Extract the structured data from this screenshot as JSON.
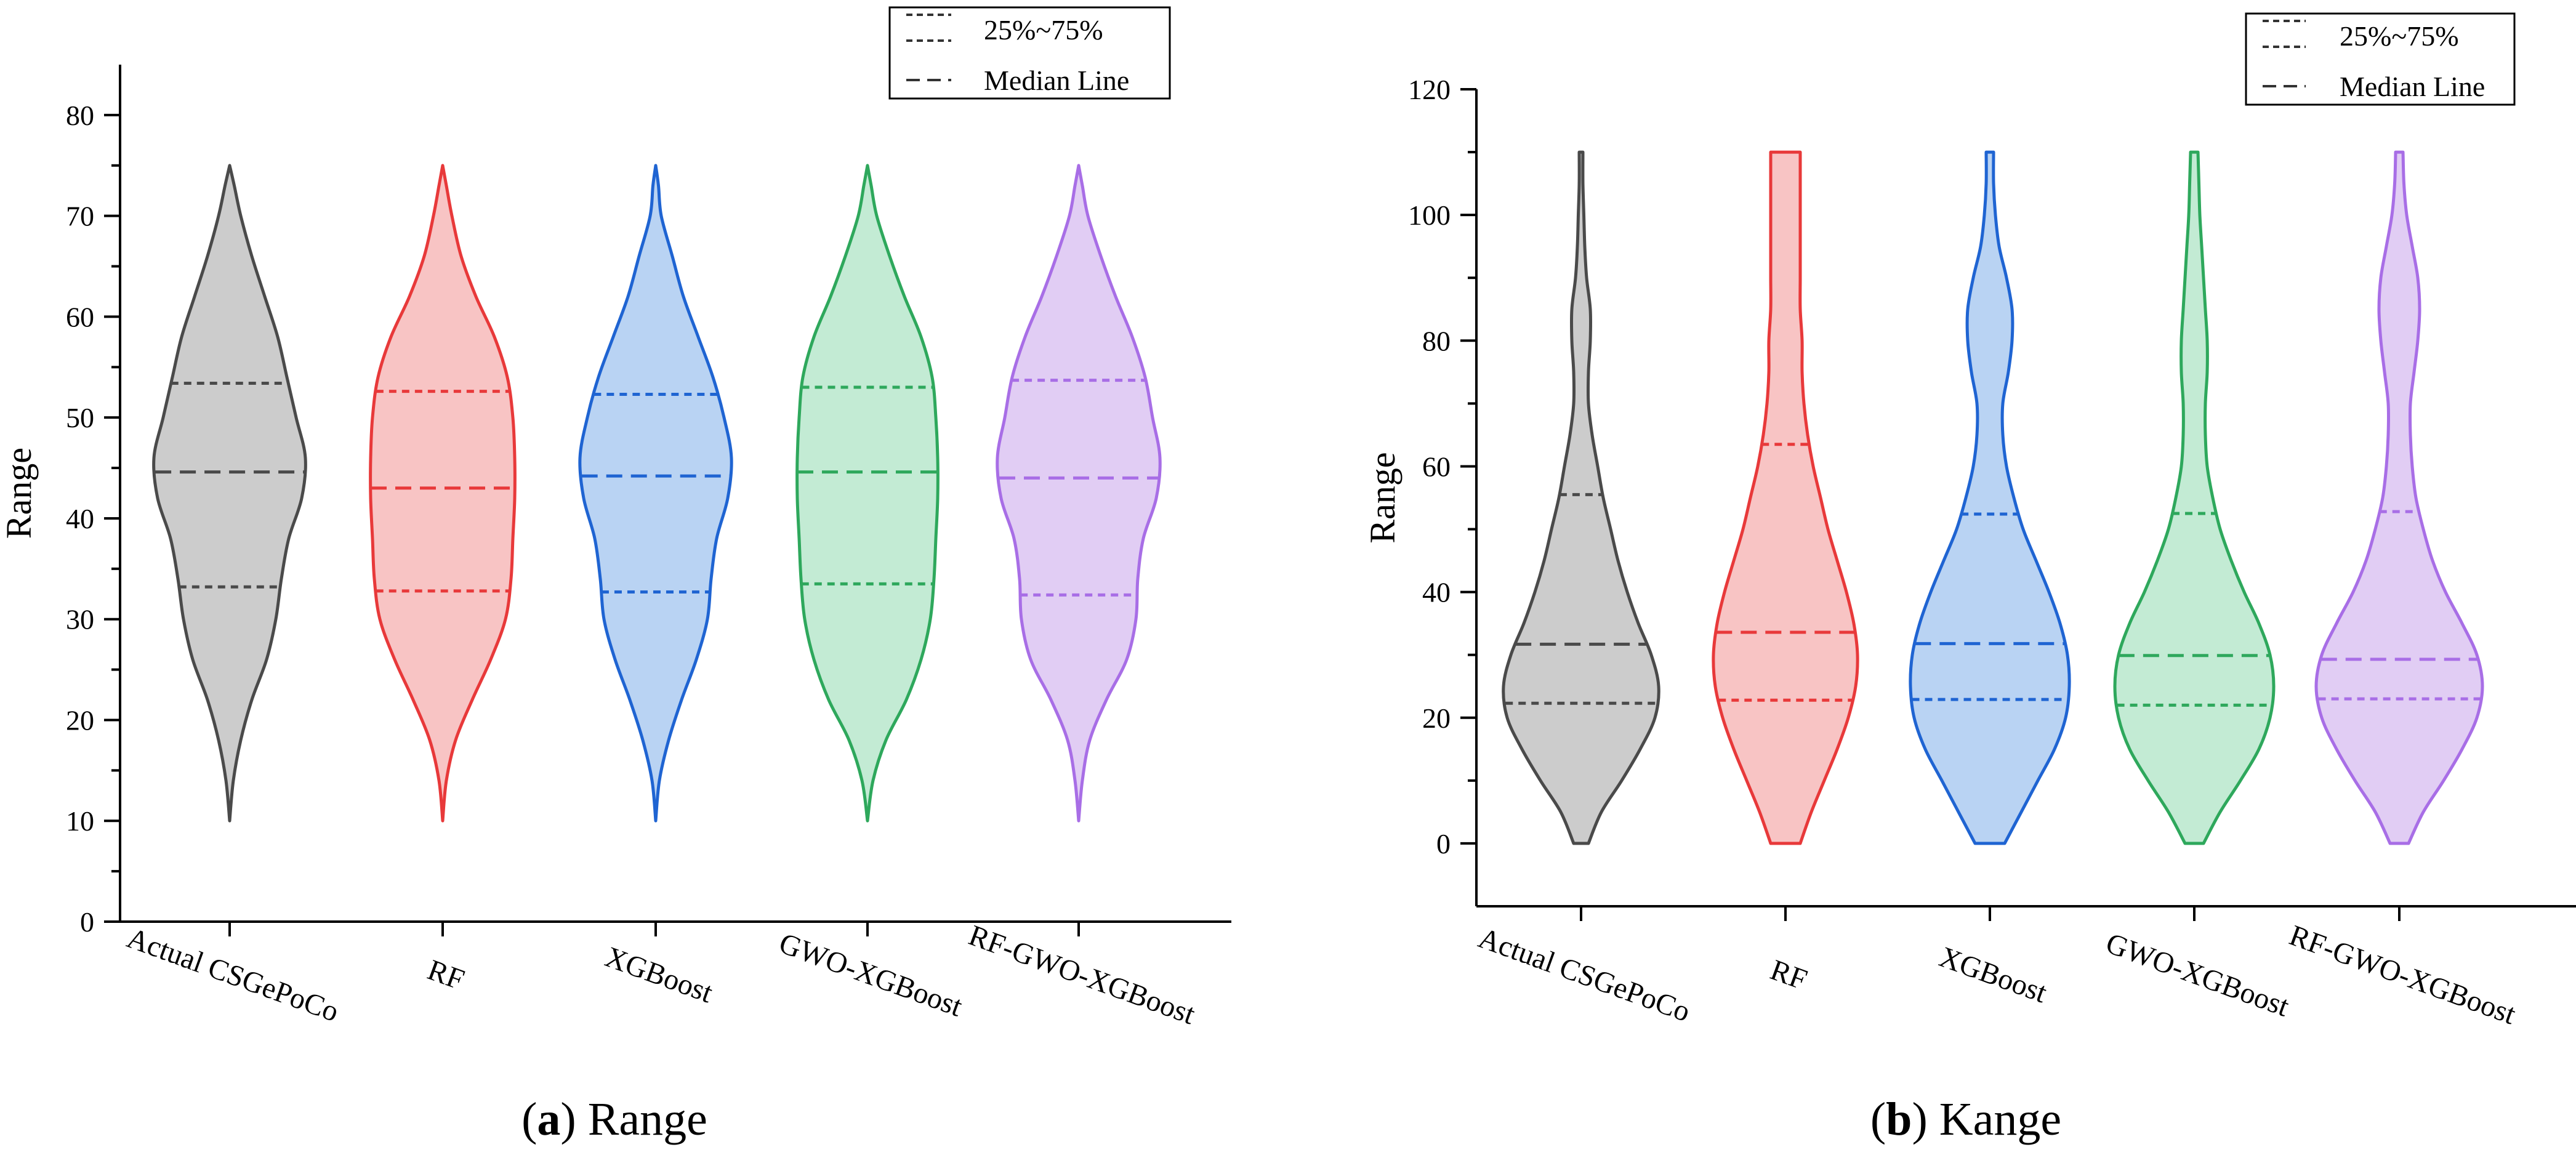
{
  "chart_data": [
    {
      "type": "violin",
      "caption_letter": "a",
      "caption_text": "Range",
      "ylabel": "Range",
      "xlabel": "",
      "ylim": [
        0,
        85
      ],
      "yticks": [
        0,
        10,
        20,
        30,
        40,
        50,
        60,
        70,
        80
      ],
      "grid": false,
      "legend": {
        "position": "top-right",
        "entries": [
          {
            "label": "25%~75%",
            "style": "short-dash"
          },
          {
            "label": "Median Line",
            "style": "long-dash"
          }
        ]
      },
      "categories": [
        "Actual CSGePoCo",
        "RF",
        "XGBoost",
        "GWO-XGBoost",
        "RF-GWO-XGBoost"
      ],
      "series": [
        {
          "category": "Actual CSGePoCo",
          "color": "#4a4a4a",
          "fill": "#cccccc",
          "min": 10,
          "max": 75,
          "q1": 33.2,
          "median": 44.6,
          "q3": 53.4,
          "profile": [
            [
              10,
              0.0
            ],
            [
              14,
              0.04
            ],
            [
              18,
              0.12
            ],
            [
              22,
              0.24
            ],
            [
              26,
              0.4
            ],
            [
              30,
              0.5
            ],
            [
              34,
              0.56
            ],
            [
              38,
              0.64
            ],
            [
              42,
              0.78
            ],
            [
              46,
              0.82
            ],
            [
              50,
              0.72
            ],
            [
              54,
              0.62
            ],
            [
              58,
              0.52
            ],
            [
              62,
              0.38
            ],
            [
              66,
              0.24
            ],
            [
              70,
              0.12
            ],
            [
              73,
              0.05
            ],
            [
              75,
              0.0
            ]
          ]
        },
        {
          "category": "RF",
          "color": "#e8393a",
          "fill": "#f8c4c4",
          "min": 10,
          "max": 75,
          "q1": 32.8,
          "median": 43.0,
          "q3": 52.6,
          "profile": [
            [
              10,
              0.0
            ],
            [
              14,
              0.04
            ],
            [
              18,
              0.14
            ],
            [
              22,
              0.32
            ],
            [
              26,
              0.52
            ],
            [
              30,
              0.68
            ],
            [
              34,
              0.74
            ],
            [
              38,
              0.76
            ],
            [
              42,
              0.78
            ],
            [
              46,
              0.78
            ],
            [
              50,
              0.76
            ],
            [
              54,
              0.7
            ],
            [
              58,
              0.56
            ],
            [
              62,
              0.36
            ],
            [
              66,
              0.2
            ],
            [
              70,
              0.1
            ],
            [
              73,
              0.04
            ],
            [
              75,
              0.0
            ]
          ]
        },
        {
          "category": "XGBoost",
          "color": "#1f64d2",
          "fill": "#b9d3f3",
          "min": 10,
          "max": 75,
          "q1": 32.7,
          "median": 44.2,
          "q3": 52.3,
          "profile": [
            [
              10,
              0.0
            ],
            [
              14,
              0.04
            ],
            [
              18,
              0.14
            ],
            [
              22,
              0.28
            ],
            [
              26,
              0.44
            ],
            [
              30,
              0.56
            ],
            [
              34,
              0.6
            ],
            [
              38,
              0.66
            ],
            [
              42,
              0.78
            ],
            [
              46,
              0.82
            ],
            [
              50,
              0.74
            ],
            [
              54,
              0.62
            ],
            [
              58,
              0.46
            ],
            [
              62,
              0.3
            ],
            [
              66,
              0.18
            ],
            [
              70,
              0.06
            ],
            [
              73,
              0.03
            ],
            [
              75,
              0.0
            ]
          ]
        },
        {
          "category": "GWO-XGBoost",
          "color": "#2ea85c",
          "fill": "#c3ebd4",
          "min": 10,
          "max": 75,
          "q1": 33.5,
          "median": 44.6,
          "q3": 53.0,
          "profile": [
            [
              10,
              0.0
            ],
            [
              14,
              0.06
            ],
            [
              18,
              0.2
            ],
            [
              22,
              0.42
            ],
            [
              26,
              0.58
            ],
            [
              30,
              0.68
            ],
            [
              34,
              0.72
            ],
            [
              38,
              0.74
            ],
            [
              42,
              0.76
            ],
            [
              46,
              0.76
            ],
            [
              50,
              0.74
            ],
            [
              54,
              0.7
            ],
            [
              58,
              0.58
            ],
            [
              62,
              0.4
            ],
            [
              66,
              0.24
            ],
            [
              70,
              0.1
            ],
            [
              73,
              0.04
            ],
            [
              75,
              0.0
            ]
          ]
        },
        {
          "category": "RF-GWO-XGBoost",
          "color": "#a86ee6",
          "fill": "#e1cdf4",
          "min": 10,
          "max": 75,
          "q1": 32.4,
          "median": 44.0,
          "q3": 53.7,
          "profile": [
            [
              10,
              0.0
            ],
            [
              14,
              0.04
            ],
            [
              18,
              0.12
            ],
            [
              22,
              0.3
            ],
            [
              26,
              0.52
            ],
            [
              30,
              0.62
            ],
            [
              34,
              0.64
            ],
            [
              38,
              0.7
            ],
            [
              42,
              0.84
            ],
            [
              46,
              0.88
            ],
            [
              50,
              0.8
            ],
            [
              54,
              0.72
            ],
            [
              58,
              0.58
            ],
            [
              62,
              0.4
            ],
            [
              66,
              0.24
            ],
            [
              70,
              0.1
            ],
            [
              73,
              0.04
            ],
            [
              75,
              0.0
            ]
          ]
        }
      ]
    },
    {
      "type": "violin",
      "caption_letter": "b",
      "caption_text": "Kange",
      "ylabel": "Range",
      "xlabel": "",
      "ylim": [
        -10,
        120
      ],
      "yticks": [
        0,
        20,
        40,
        60,
        80,
        100,
        120
      ],
      "grid": false,
      "legend": {
        "position": "top-right",
        "entries": [
          {
            "label": "25%~75%",
            "style": "short-dash"
          },
          {
            "label": "Median Line",
            "style": "long-dash"
          }
        ]
      },
      "categories": [
        "Actual CSGePoCo",
        "RF",
        "XGBoost",
        "GWO-XGBoost",
        "RF-GWO-XGBoost"
      ],
      "series": [
        {
          "category": "Actual CSGePoCo",
          "color": "#4a4a4a",
          "fill": "#cccccc",
          "min": 0,
          "max": 110,
          "q1": 22.3,
          "median": 31.7,
          "q3": 55.5,
          "profile": [
            [
              0,
              0.08
            ],
            [
              5,
              0.22
            ],
            [
              10,
              0.44
            ],
            [
              15,
              0.64
            ],
            [
              20,
              0.8
            ],
            [
              25,
              0.84
            ],
            [
              30,
              0.76
            ],
            [
              35,
              0.62
            ],
            [
              40,
              0.5
            ],
            [
              45,
              0.4
            ],
            [
              50,
              0.32
            ],
            [
              55,
              0.24
            ],
            [
              60,
              0.18
            ],
            [
              65,
              0.12
            ],
            [
              70,
              0.08
            ],
            [
              75,
              0.08
            ],
            [
              80,
              0.1
            ],
            [
              85,
              0.1
            ],
            [
              90,
              0.06
            ],
            [
              95,
              0.04
            ],
            [
              100,
              0.03
            ],
            [
              105,
              0.02
            ],
            [
              110,
              0.02
            ]
          ]
        },
        {
          "category": "RF",
          "color": "#e8393a",
          "fill": "#f8c4c4",
          "min": 0,
          "max": 110,
          "q1": 22.8,
          "median": 33.6,
          "q3": 63.5,
          "profile": [
            [
              0,
              0.16
            ],
            [
              5,
              0.28
            ],
            [
              10,
              0.42
            ],
            [
              15,
              0.56
            ],
            [
              20,
              0.68
            ],
            [
              25,
              0.76
            ],
            [
              30,
              0.78
            ],
            [
              35,
              0.74
            ],
            [
              40,
              0.66
            ],
            [
              45,
              0.56
            ],
            [
              50,
              0.46
            ],
            [
              55,
              0.38
            ],
            [
              60,
              0.3
            ],
            [
              65,
              0.24
            ],
            [
              70,
              0.2
            ],
            [
              75,
              0.18
            ],
            [
              80,
              0.18
            ],
            [
              85,
              0.16
            ],
            [
              90,
              0.16
            ],
            [
              95,
              0.16
            ],
            [
              100,
              0.16
            ],
            [
              105,
              0.16
            ],
            [
              110,
              0.16
            ]
          ]
        },
        {
          "category": "XGBoost",
          "color": "#1f64d2",
          "fill": "#b9d3f3",
          "min": 0,
          "max": 110,
          "q1": 22.9,
          "median": 31.8,
          "q3": 52.4,
          "profile": [
            [
              0,
              0.16
            ],
            [
              5,
              0.34
            ],
            [
              10,
              0.52
            ],
            [
              15,
              0.7
            ],
            [
              20,
              0.82
            ],
            [
              25,
              0.86
            ],
            [
              30,
              0.84
            ],
            [
              35,
              0.76
            ],
            [
              40,
              0.64
            ],
            [
              45,
              0.5
            ],
            [
              50,
              0.36
            ],
            [
              55,
              0.26
            ],
            [
              60,
              0.18
            ],
            [
              65,
              0.14
            ],
            [
              70,
              0.14
            ],
            [
              75,
              0.2
            ],
            [
              80,
              0.24
            ],
            [
              85,
              0.24
            ],
            [
              90,
              0.18
            ],
            [
              95,
              0.1
            ],
            [
              100,
              0.06
            ],
            [
              105,
              0.04
            ],
            [
              110,
              0.04
            ]
          ]
        },
        {
          "category": "GWO-XGBoost",
          "color": "#2ea85c",
          "fill": "#c3ebd4",
          "min": 0,
          "max": 110,
          "q1": 22.0,
          "median": 29.9,
          "q3": 52.5,
          "profile": [
            [
              0,
              0.1
            ],
            [
              5,
              0.28
            ],
            [
              10,
              0.5
            ],
            [
              15,
              0.7
            ],
            [
              20,
              0.82
            ],
            [
              25,
              0.86
            ],
            [
              30,
              0.82
            ],
            [
              35,
              0.7
            ],
            [
              40,
              0.54
            ],
            [
              45,
              0.4
            ],
            [
              50,
              0.28
            ],
            [
              55,
              0.2
            ],
            [
              60,
              0.14
            ],
            [
              65,
              0.12
            ],
            [
              70,
              0.12
            ],
            [
              75,
              0.14
            ],
            [
              80,
              0.14
            ],
            [
              85,
              0.12
            ],
            [
              90,
              0.1
            ],
            [
              95,
              0.08
            ],
            [
              100,
              0.06
            ],
            [
              105,
              0.05
            ],
            [
              110,
              0.04
            ]
          ]
        },
        {
          "category": "RF-GWO-XGBoost",
          "color": "#a86ee6",
          "fill": "#e1cdf4",
          "min": 0,
          "max": 110,
          "q1": 23.0,
          "median": 29.3,
          "q3": 52.8,
          "profile": [
            [
              0,
              0.1
            ],
            [
              5,
              0.26
            ],
            [
              10,
              0.48
            ],
            [
              15,
              0.68
            ],
            [
              20,
              0.84
            ],
            [
              25,
              0.9
            ],
            [
              30,
              0.84
            ],
            [
              35,
              0.68
            ],
            [
              40,
              0.5
            ],
            [
              45,
              0.36
            ],
            [
              50,
              0.26
            ],
            [
              55,
              0.18
            ],
            [
              60,
              0.14
            ],
            [
              65,
              0.12
            ],
            [
              70,
              0.12
            ],
            [
              75,
              0.16
            ],
            [
              80,
              0.2
            ],
            [
              85,
              0.22
            ],
            [
              90,
              0.2
            ],
            [
              95,
              0.14
            ],
            [
              100,
              0.08
            ],
            [
              105,
              0.05
            ],
            [
              110,
              0.04
            ]
          ]
        }
      ]
    }
  ]
}
